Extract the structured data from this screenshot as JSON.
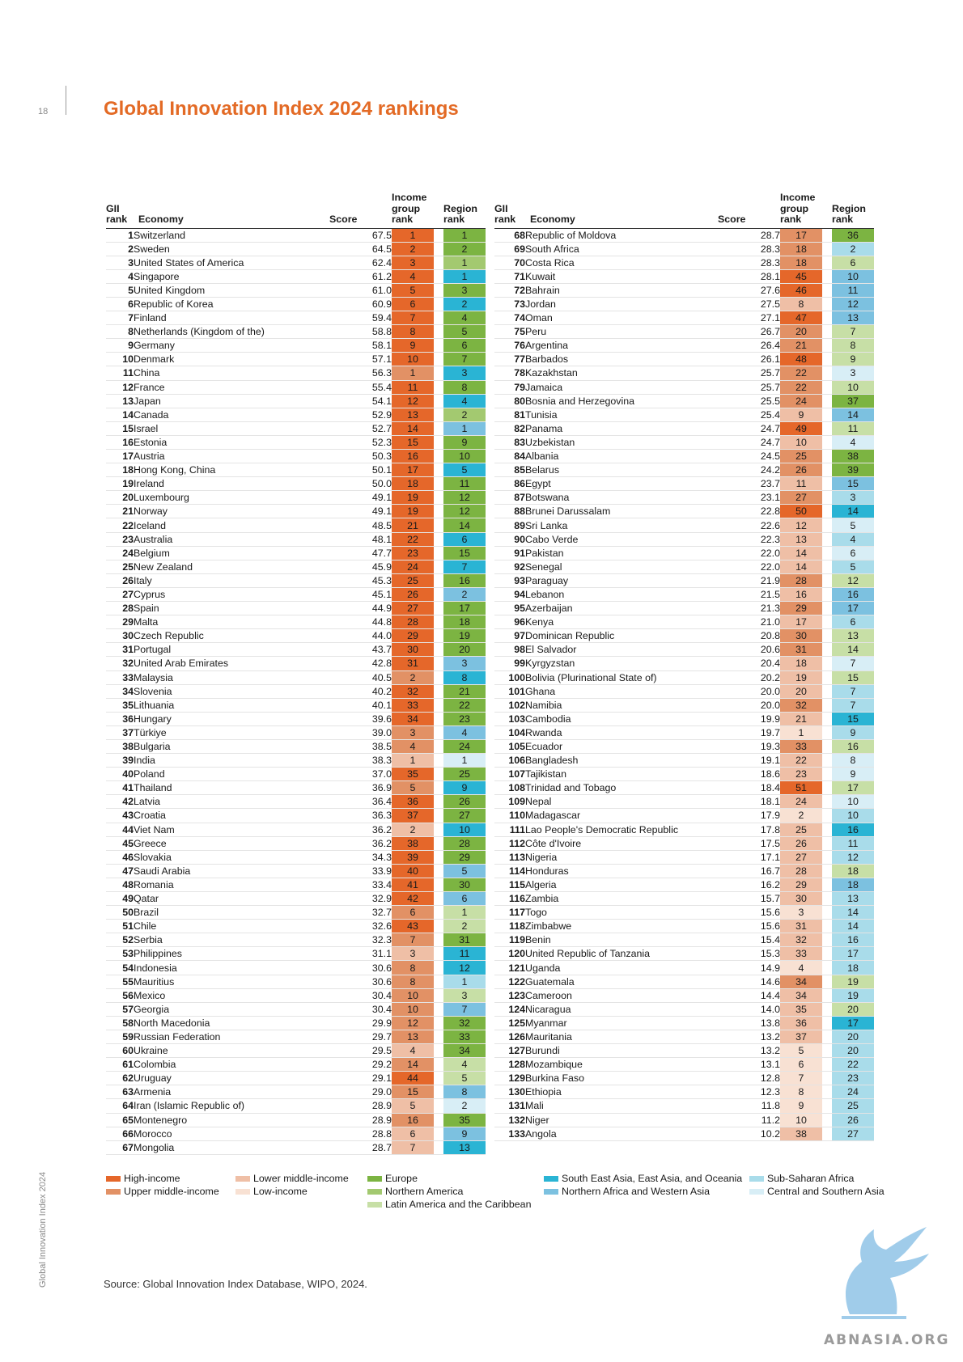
{
  "page": {
    "number": "18",
    "title": "Global Innovation Index 2024 rankings",
    "side_label": "Global Innovation Index 2024",
    "source": "Source: Global Innovation Index Database, WIPO, 2024.",
    "watermark": "ABNASIA.ORG"
  },
  "headers": {
    "gii": "GII rank",
    "economy": "Economy",
    "score": "Score",
    "income": "Income group rank",
    "region": "Region rank"
  },
  "colors": {
    "H": "#e5672a",
    "UM": "#e29165",
    "LM": "#efbfa6",
    "L": "#f8e1d3",
    "EU": "#7cb442",
    "NA": "#a3c970",
    "LAC": "#c7dfa6",
    "SEA": "#2ab4d4",
    "NAWA": "#7cc1e0",
    "SSA": "#a9dcea",
    "CSA": "#d8eef6"
  },
  "legend_income": [
    {
      "key": "H",
      "label": "High-income"
    },
    {
      "key": "UM",
      "label": "Upper middle-income"
    },
    {
      "key": "LM",
      "label": "Lower middle-income"
    },
    {
      "key": "L",
      "label": "Low-income"
    }
  ],
  "legend_region": [
    {
      "key": "EU",
      "label": "Europe"
    },
    {
      "key": "NA",
      "label": "Northern America"
    },
    {
      "key": "LAC",
      "label": "Latin America and the Caribbean"
    },
    {
      "key": "SEA",
      "label": "South East Asia, East Asia, and Oceania"
    },
    {
      "key": "NAWA",
      "label": "Northern Africa and Western Asia"
    },
    {
      "key": "SSA",
      "label": "Sub-Saharan Africa"
    },
    {
      "key": "CSA",
      "label": "Central and Southern Asia"
    }
  ],
  "table_left": [
    [
      "1",
      "Switzerland",
      "67.5",
      "1",
      "H",
      "1",
      "EU"
    ],
    [
      "2",
      "Sweden",
      "64.5",
      "2",
      "H",
      "2",
      "EU"
    ],
    [
      "3",
      "United States of America",
      "62.4",
      "3",
      "H",
      "1",
      "NA"
    ],
    [
      "4",
      "Singapore",
      "61.2",
      "4",
      "H",
      "1",
      "SEA"
    ],
    [
      "5",
      "United Kingdom",
      "61.0",
      "5",
      "H",
      "3",
      "EU"
    ],
    [
      "6",
      "Republic of Korea",
      "60.9",
      "6",
      "H",
      "2",
      "SEA"
    ],
    [
      "7",
      "Finland",
      "59.4",
      "7",
      "H",
      "4",
      "EU"
    ],
    [
      "8",
      "Netherlands (Kingdom of the)",
      "58.8",
      "8",
      "H",
      "5",
      "EU"
    ],
    [
      "9",
      "Germany",
      "58.1",
      "9",
      "H",
      "6",
      "EU"
    ],
    [
      "10",
      "Denmark",
      "57.1",
      "10",
      "H",
      "7",
      "EU"
    ],
    [
      "11",
      "China",
      "56.3",
      "1",
      "UM",
      "3",
      "SEA"
    ],
    [
      "12",
      "France",
      "55.4",
      "11",
      "H",
      "8",
      "EU"
    ],
    [
      "13",
      "Japan",
      "54.1",
      "12",
      "H",
      "4",
      "SEA"
    ],
    [
      "14",
      "Canada",
      "52.9",
      "13",
      "H",
      "2",
      "NA"
    ],
    [
      "15",
      "Israel",
      "52.7",
      "14",
      "H",
      "1",
      "NAWA"
    ],
    [
      "16",
      "Estonia",
      "52.3",
      "15",
      "H",
      "9",
      "EU"
    ],
    [
      "17",
      "Austria",
      "50.3",
      "16",
      "H",
      "10",
      "EU"
    ],
    [
      "18",
      "Hong Kong, China",
      "50.1",
      "17",
      "H",
      "5",
      "SEA"
    ],
    [
      "19",
      "Ireland",
      "50.0",
      "18",
      "H",
      "11",
      "EU"
    ],
    [
      "20",
      "Luxembourg",
      "49.1",
      "19",
      "H",
      "12",
      "EU"
    ],
    [
      "21",
      "Norway",
      "49.1",
      "19",
      "H",
      "12",
      "EU"
    ],
    [
      "22",
      "Iceland",
      "48.5",
      "21",
      "H",
      "14",
      "EU"
    ],
    [
      "23",
      "Australia",
      "48.1",
      "22",
      "H",
      "6",
      "SEA"
    ],
    [
      "24",
      "Belgium",
      "47.7",
      "23",
      "H",
      "15",
      "EU"
    ],
    [
      "25",
      "New Zealand",
      "45.9",
      "24",
      "H",
      "7",
      "SEA"
    ],
    [
      "26",
      "Italy",
      "45.3",
      "25",
      "H",
      "16",
      "EU"
    ],
    [
      "27",
      "Cyprus",
      "45.1",
      "26",
      "H",
      "2",
      "NAWA"
    ],
    [
      "28",
      "Spain",
      "44.9",
      "27",
      "H",
      "17",
      "EU"
    ],
    [
      "29",
      "Malta",
      "44.8",
      "28",
      "H",
      "18",
      "EU"
    ],
    [
      "30",
      "Czech Republic",
      "44.0",
      "29",
      "H",
      "19",
      "EU"
    ],
    [
      "31",
      "Portugal",
      "43.7",
      "30",
      "H",
      "20",
      "EU"
    ],
    [
      "32",
      "United Arab Emirates",
      "42.8",
      "31",
      "H",
      "3",
      "NAWA"
    ],
    [
      "33",
      "Malaysia",
      "40.5",
      "2",
      "UM",
      "8",
      "SEA"
    ],
    [
      "34",
      "Slovenia",
      "40.2",
      "32",
      "H",
      "21",
      "EU"
    ],
    [
      "35",
      "Lithuania",
      "40.1",
      "33",
      "H",
      "22",
      "EU"
    ],
    [
      "36",
      "Hungary",
      "39.6",
      "34",
      "H",
      "23",
      "EU"
    ],
    [
      "37",
      "Türkiye",
      "39.0",
      "3",
      "UM",
      "4",
      "NAWA"
    ],
    [
      "38",
      "Bulgaria",
      "38.5",
      "4",
      "UM",
      "24",
      "EU"
    ],
    [
      "39",
      "India",
      "38.3",
      "1",
      "LM",
      "1",
      "CSA"
    ],
    [
      "40",
      "Poland",
      "37.0",
      "35",
      "H",
      "25",
      "EU"
    ],
    [
      "41",
      "Thailand",
      "36.9",
      "5",
      "UM",
      "9",
      "SEA"
    ],
    [
      "42",
      "Latvia",
      "36.4",
      "36",
      "H",
      "26",
      "EU"
    ],
    [
      "43",
      "Croatia",
      "36.3",
      "37",
      "H",
      "27",
      "EU"
    ],
    [
      "44",
      "Viet Nam",
      "36.2",
      "2",
      "LM",
      "10",
      "SEA"
    ],
    [
      "45",
      "Greece",
      "36.2",
      "38",
      "H",
      "28",
      "EU"
    ],
    [
      "46",
      "Slovakia",
      "34.3",
      "39",
      "H",
      "29",
      "EU"
    ],
    [
      "47",
      "Saudi Arabia",
      "33.9",
      "40",
      "H",
      "5",
      "NAWA"
    ],
    [
      "48",
      "Romania",
      "33.4",
      "41",
      "H",
      "30",
      "EU"
    ],
    [
      "49",
      "Qatar",
      "32.9",
      "42",
      "H",
      "6",
      "NAWA"
    ],
    [
      "50",
      "Brazil",
      "32.7",
      "6",
      "UM",
      "1",
      "LAC"
    ],
    [
      "51",
      "Chile",
      "32.6",
      "43",
      "H",
      "2",
      "LAC"
    ],
    [
      "52",
      "Serbia",
      "32.3",
      "7",
      "UM",
      "31",
      "EU"
    ],
    [
      "53",
      "Philippines",
      "31.1",
      "3",
      "LM",
      "11",
      "SEA"
    ],
    [
      "54",
      "Indonesia",
      "30.6",
      "8",
      "UM",
      "12",
      "SEA"
    ],
    [
      "55",
      "Mauritius",
      "30.6",
      "8",
      "UM",
      "1",
      "SSA"
    ],
    [
      "56",
      "Mexico",
      "30.4",
      "10",
      "UM",
      "3",
      "LAC"
    ],
    [
      "57",
      "Georgia",
      "30.4",
      "10",
      "UM",
      "7",
      "NAWA"
    ],
    [
      "58",
      "North Macedonia",
      "29.9",
      "12",
      "UM",
      "32",
      "EU"
    ],
    [
      "59",
      "Russian Federation",
      "29.7",
      "13",
      "UM",
      "33",
      "EU"
    ],
    [
      "60",
      "Ukraine",
      "29.5",
      "4",
      "LM",
      "34",
      "EU"
    ],
    [
      "61",
      "Colombia",
      "29.2",
      "14",
      "UM",
      "4",
      "LAC"
    ],
    [
      "62",
      "Uruguay",
      "29.1",
      "44",
      "H",
      "5",
      "LAC"
    ],
    [
      "63",
      "Armenia",
      "29.0",
      "15",
      "UM",
      "8",
      "NAWA"
    ],
    [
      "64",
      "Iran (Islamic Republic of)",
      "28.9",
      "5",
      "LM",
      "2",
      "CSA"
    ],
    [
      "65",
      "Montenegro",
      "28.9",
      "16",
      "UM",
      "35",
      "EU"
    ],
    [
      "66",
      "Morocco",
      "28.8",
      "6",
      "LM",
      "9",
      "NAWA"
    ],
    [
      "67",
      "Mongolia",
      "28.7",
      "7",
      "LM",
      "13",
      "SEA"
    ]
  ],
  "table_right": [
    [
      "68",
      "Republic of Moldova",
      "28.7",
      "17",
      "UM",
      "36",
      "EU"
    ],
    [
      "69",
      "South Africa",
      "28.3",
      "18",
      "UM",
      "2",
      "SSA"
    ],
    [
      "70",
      "Costa Rica",
      "28.3",
      "18",
      "UM",
      "6",
      "LAC"
    ],
    [
      "71",
      "Kuwait",
      "28.1",
      "45",
      "H",
      "10",
      "NAWA"
    ],
    [
      "72",
      "Bahrain",
      "27.6",
      "46",
      "H",
      "11",
      "NAWA"
    ],
    [
      "73",
      "Jordan",
      "27.5",
      "8",
      "LM",
      "12",
      "NAWA"
    ],
    [
      "74",
      "Oman",
      "27.1",
      "47",
      "H",
      "13",
      "NAWA"
    ],
    [
      "75",
      "Peru",
      "26.7",
      "20",
      "UM",
      "7",
      "LAC"
    ],
    [
      "76",
      "Argentina",
      "26.4",
      "21",
      "UM",
      "8",
      "LAC"
    ],
    [
      "77",
      "Barbados",
      "26.1",
      "48",
      "H",
      "9",
      "LAC"
    ],
    [
      "78",
      "Kazakhstan",
      "25.7",
      "22",
      "UM",
      "3",
      "CSA"
    ],
    [
      "79",
      "Jamaica",
      "25.7",
      "22",
      "UM",
      "10",
      "LAC"
    ],
    [
      "80",
      "Bosnia and Herzegovina",
      "25.5",
      "24",
      "UM",
      "37",
      "EU"
    ],
    [
      "81",
      "Tunisia",
      "25.4",
      "9",
      "LM",
      "14",
      "NAWA"
    ],
    [
      "82",
      "Panama",
      "24.7",
      "49",
      "H",
      "11",
      "LAC"
    ],
    [
      "83",
      "Uzbekistan",
      "24.7",
      "10",
      "LM",
      "4",
      "CSA"
    ],
    [
      "84",
      "Albania",
      "24.5",
      "25",
      "UM",
      "38",
      "EU"
    ],
    [
      "85",
      "Belarus",
      "24.2",
      "26",
      "UM",
      "39",
      "EU"
    ],
    [
      "86",
      "Egypt",
      "23.7",
      "11",
      "LM",
      "15",
      "NAWA"
    ],
    [
      "87",
      "Botswana",
      "23.1",
      "27",
      "UM",
      "3",
      "SSA"
    ],
    [
      "88",
      "Brunei Darussalam",
      "22.8",
      "50",
      "H",
      "14",
      "SEA"
    ],
    [
      "89",
      "Sri Lanka",
      "22.6",
      "12",
      "LM",
      "5",
      "CSA"
    ],
    [
      "90",
      "Cabo Verde",
      "22.3",
      "13",
      "LM",
      "4",
      "SSA"
    ],
    [
      "91",
      "Pakistan",
      "22.0",
      "14",
      "LM",
      "6",
      "CSA"
    ],
    [
      "92",
      "Senegal",
      "22.0",
      "14",
      "LM",
      "5",
      "SSA"
    ],
    [
      "93",
      "Paraguay",
      "21.9",
      "28",
      "UM",
      "12",
      "LAC"
    ],
    [
      "94",
      "Lebanon",
      "21.5",
      "16",
      "LM",
      "16",
      "NAWA"
    ],
    [
      "95",
      "Azerbaijan",
      "21.3",
      "29",
      "UM",
      "17",
      "NAWA"
    ],
    [
      "96",
      "Kenya",
      "21.0",
      "17",
      "LM",
      "6",
      "SSA"
    ],
    [
      "97",
      "Dominican Republic",
      "20.8",
      "30",
      "UM",
      "13",
      "LAC"
    ],
    [
      "98",
      "El Salvador",
      "20.6",
      "31",
      "UM",
      "14",
      "LAC"
    ],
    [
      "99",
      "Kyrgyzstan",
      "20.4",
      "18",
      "LM",
      "7",
      "CSA"
    ],
    [
      "100",
      "Bolivia (Plurinational State of)",
      "20.2",
      "19",
      "LM",
      "15",
      "LAC"
    ],
    [
      "101",
      "Ghana",
      "20.0",
      "20",
      "LM",
      "7",
      "SSA"
    ],
    [
      "102",
      "Namibia",
      "20.0",
      "32",
      "UM",
      "7",
      "SSA"
    ],
    [
      "103",
      "Cambodia",
      "19.9",
      "21",
      "LM",
      "15",
      "SEA"
    ],
    [
      "104",
      "Rwanda",
      "19.7",
      "1",
      "L",
      "9",
      "SSA"
    ],
    [
      "105",
      "Ecuador",
      "19.3",
      "33",
      "UM",
      "16",
      "LAC"
    ],
    [
      "106",
      "Bangladesh",
      "19.1",
      "22",
      "LM",
      "8",
      "CSA"
    ],
    [
      "107",
      "Tajikistan",
      "18.6",
      "23",
      "LM",
      "9",
      "CSA"
    ],
    [
      "108",
      "Trinidad and Tobago",
      "18.4",
      "51",
      "H",
      "17",
      "LAC"
    ],
    [
      "109",
      "Nepal",
      "18.1",
      "24",
      "LM",
      "10",
      "CSA"
    ],
    [
      "110",
      "Madagascar",
      "17.9",
      "2",
      "L",
      "10",
      "SSA"
    ],
    [
      "111",
      "Lao People's Democratic Republic",
      "17.8",
      "25",
      "LM",
      "16",
      "SEA"
    ],
    [
      "112",
      "Côte d'Ivoire",
      "17.5",
      "26",
      "LM",
      "11",
      "SSA"
    ],
    [
      "113",
      "Nigeria",
      "17.1",
      "27",
      "LM",
      "12",
      "SSA"
    ],
    [
      "114",
      "Honduras",
      "16.7",
      "28",
      "LM",
      "18",
      "LAC"
    ],
    [
      "115",
      "Algeria",
      "16.2",
      "29",
      "LM",
      "18",
      "NAWA"
    ],
    [
      "116",
      "Zambia",
      "15.7",
      "30",
      "LM",
      "13",
      "SSA"
    ],
    [
      "117",
      "Togo",
      "15.6",
      "3",
      "L",
      "14",
      "SSA"
    ],
    [
      "118",
      "Zimbabwe",
      "15.6",
      "31",
      "LM",
      "14",
      "SSA"
    ],
    [
      "119",
      "Benin",
      "15.4",
      "32",
      "LM",
      "16",
      "SSA"
    ],
    [
      "120",
      "United Republic of Tanzania",
      "15.3",
      "33",
      "LM",
      "17",
      "SSA"
    ],
    [
      "121",
      "Uganda",
      "14.9",
      "4",
      "L",
      "18",
      "SSA"
    ],
    [
      "122",
      "Guatemala",
      "14.6",
      "34",
      "UM",
      "19",
      "LAC"
    ],
    [
      "123",
      "Cameroon",
      "14.4",
      "34",
      "LM",
      "19",
      "SSA"
    ],
    [
      "124",
      "Nicaragua",
      "14.0",
      "35",
      "LM",
      "20",
      "LAC"
    ],
    [
      "125",
      "Myanmar",
      "13.8",
      "36",
      "LM",
      "17",
      "SEA"
    ],
    [
      "126",
      "Mauritania",
      "13.2",
      "37",
      "LM",
      "20",
      "SSA"
    ],
    [
      "127",
      "Burundi",
      "13.2",
      "5",
      "L",
      "20",
      "SSA"
    ],
    [
      "128",
      "Mozambique",
      "13.1",
      "6",
      "L",
      "22",
      "SSA"
    ],
    [
      "129",
      "Burkina Faso",
      "12.8",
      "7",
      "L",
      "23",
      "SSA"
    ],
    [
      "130",
      "Ethiopia",
      "12.3",
      "8",
      "L",
      "24",
      "SSA"
    ],
    [
      "131",
      "Mali",
      "11.8",
      "9",
      "L",
      "25",
      "SSA"
    ],
    [
      "132",
      "Niger",
      "11.2",
      "10",
      "L",
      "26",
      "SSA"
    ],
    [
      "133",
      "Angola",
      "10.2",
      "38",
      "LM",
      "27",
      "SSA"
    ]
  ]
}
